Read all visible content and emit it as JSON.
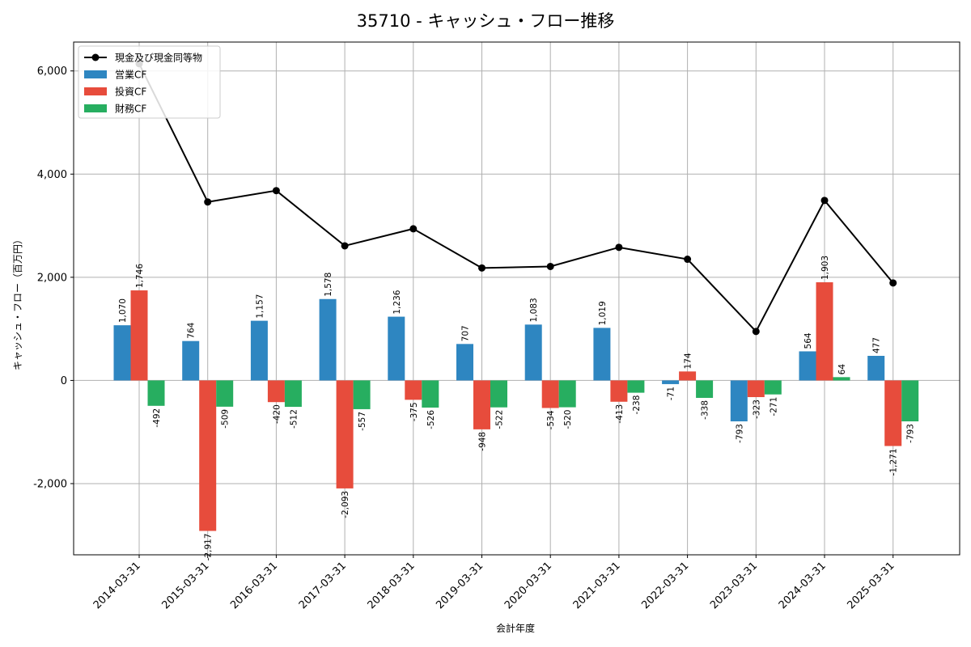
{
  "chart_data": {
    "type": "bar",
    "title": "35710 - キャッシュ・フロー推移",
    "xlabel": "会計年度",
    "ylabel": "キャッシュ・フロー（百万円）",
    "categories": [
      "2014-03-31",
      "2015-03-31",
      "2016-03-31",
      "2017-03-31",
      "2018-03-31",
      "2019-03-31",
      "2020-03-31",
      "2021-03-31",
      "2022-03-31",
      "2023-03-31",
      "2024-03-31",
      "2025-03-31"
    ],
    "series": [
      {
        "name": "営業CF",
        "kind": "bar",
        "color": "#2e86c1",
        "values": [
          1070,
          764,
          1157,
          1578,
          1236,
          707,
          1083,
          1019,
          -71,
          -793,
          564,
          477
        ],
        "labels": [
          "1,070",
          "764",
          "1,157",
          "1,578",
          "1,236",
          "707",
          "1,083",
          "1,019",
          "-71",
          "-793",
          "564",
          "477"
        ]
      },
      {
        "name": "投資CF",
        "kind": "bar",
        "color": "#e74c3c",
        "values": [
          1746,
          -2917,
          -420,
          -2093,
          -375,
          -948,
          -534,
          -413,
          174,
          -323,
          1903,
          -1271
        ],
        "labels": [
          "1,746",
          "-2,917",
          "-420",
          "-2,093",
          "-375",
          "-948",
          "-534",
          "-413",
          "174",
          "-323",
          "1,903",
          "-1,271"
        ]
      },
      {
        "name": "財務CF",
        "kind": "bar",
        "color": "#27ae60",
        "values": [
          -492,
          -509,
          -512,
          -557,
          -526,
          -522,
          -520,
          -238,
          -338,
          -271,
          64,
          -793
        ],
        "labels": [
          "-492",
          "-509",
          "-512",
          "-557",
          "-526",
          "-522",
          "-520",
          "-238",
          "-338",
          "-271",
          "64",
          "-793"
        ]
      },
      {
        "name": "現金及び現金同等物",
        "kind": "line",
        "color": "#000000",
        "values": [
          6140,
          3460,
          3680,
          2610,
          2940,
          2180,
          2210,
          2580,
          2350,
          950,
          3490,
          1890
        ]
      }
    ],
    "yticks": [
      -2000,
      0,
      2000,
      4000,
      6000
    ],
    "ytick_labels": [
      "-2,000",
      "0",
      "2,000",
      "4,000",
      "6,000"
    ],
    "ylim": [
      -3380,
      6560
    ],
    "grid": true,
    "legend_position": "top-left"
  }
}
